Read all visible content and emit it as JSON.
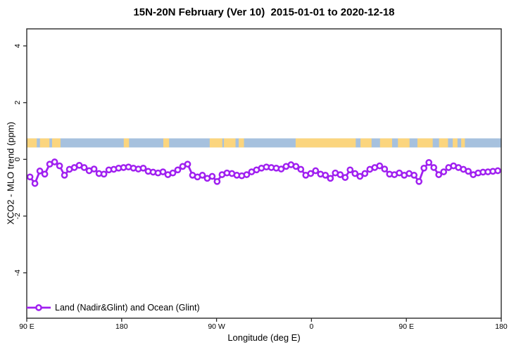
{
  "title": "15N-20N February (Ver 10)  2015-01-01 to 2020-12-18",
  "chart_data": {
    "type": "line",
    "title": "15N-20N February (Ver 10)  2015-01-01 to 2020-12-18",
    "xlabel": "Longitude (deg E)",
    "ylabel": "XCO2 - MLO trend (ppm)",
    "xlim": [
      90,
      540
    ],
    "ylim": [
      -5.6,
      4.6
    ],
    "grid": false,
    "x_ticks": [
      {
        "value": 90,
        "label": "90 E"
      },
      {
        "value": 180,
        "label": "180"
      },
      {
        "value": 270,
        "label": "90 W"
      },
      {
        "value": 360,
        "label": "0"
      },
      {
        "value": 450,
        "label": "90 E"
      },
      {
        "value": 540,
        "label": "180"
      }
    ],
    "y_ticks": [
      {
        "value": -4,
        "label": "-4"
      },
      {
        "value": -2,
        "label": "-2"
      },
      {
        "value": 0,
        "label": "0"
      },
      {
        "value": 2,
        "label": "2"
      },
      {
        "value": 4,
        "label": "4"
      }
    ],
    "colors": {
      "series": "#A020F0",
      "marker_fill": "#ffffff",
      "ocean_band": "#A6C1DE",
      "land_band": "#FBD57E",
      "axis": "#2a2a2a",
      "text": "#000000"
    },
    "map_band": {
      "description": "land/ocean coastline strip for latitude 15N-20N",
      "y_range": [
        0.42,
        0.74
      ],
      "land_segments_deg": [
        [
          90,
          99.5
        ],
        [
          102.5,
          111.5
        ],
        [
          114,
          122
        ],
        [
          182,
          187
        ],
        [
          219.5,
          225
        ],
        [
          263.5,
          275.5
        ],
        [
          277,
          288
        ],
        [
          291,
          296
        ],
        [
          345,
          402
        ],
        [
          406.5,
          417
        ],
        [
          425,
          436.5
        ],
        [
          442,
          453
        ],
        [
          460.5,
          475
        ],
        [
          481,
          489.5
        ],
        [
          494,
          498.5
        ],
        [
          502,
          505.5
        ]
      ]
    },
    "legend": {
      "label": "Land (Nadir&Glint) and Ocean (Glint)",
      "position": "bottom-left",
      "marker": "circle-line"
    },
    "series": [
      {
        "name": "Land (Nadir&Glint) and Ocean (Glint)",
        "x_start": 93.1,
        "x_step": 4.67,
        "y": [
          -0.62,
          -0.85,
          -0.41,
          -0.52,
          -0.17,
          -0.09,
          -0.23,
          -0.56,
          -0.35,
          -0.29,
          -0.21,
          -0.29,
          -0.4,
          -0.34,
          -0.5,
          -0.52,
          -0.37,
          -0.35,
          -0.31,
          -0.29,
          -0.27,
          -0.31,
          -0.34,
          -0.31,
          -0.42,
          -0.45,
          -0.48,
          -0.44,
          -0.54,
          -0.48,
          -0.37,
          -0.25,
          -0.17,
          -0.56,
          -0.62,
          -0.56,
          -0.67,
          -0.6,
          -0.78,
          -0.54,
          -0.48,
          -0.5,
          -0.56,
          -0.58,
          -0.54,
          -0.44,
          -0.37,
          -0.31,
          -0.27,
          -0.29,
          -0.31,
          -0.34,
          -0.25,
          -0.19,
          -0.25,
          -0.35,
          -0.56,
          -0.5,
          -0.4,
          -0.52,
          -0.56,
          -0.67,
          -0.48,
          -0.54,
          -0.64,
          -0.37,
          -0.5,
          -0.6,
          -0.5,
          -0.35,
          -0.29,
          -0.23,
          -0.34,
          -0.52,
          -0.54,
          -0.48,
          -0.56,
          -0.5,
          -0.56,
          -0.78,
          -0.31,
          -0.11,
          -0.29,
          -0.54,
          -0.44,
          -0.29,
          -0.23,
          -0.29,
          -0.35,
          -0.42,
          -0.54,
          -0.48,
          -0.45,
          -0.44,
          -0.42,
          -0.4
        ]
      }
    ]
  }
}
